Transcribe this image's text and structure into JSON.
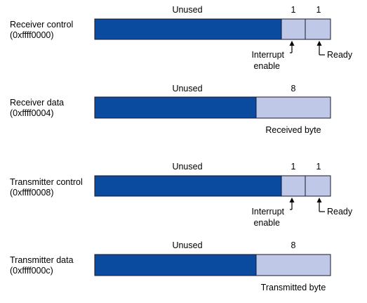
{
  "colors": {
    "unused": "#0a4a9f",
    "field": "#bfc8e6"
  },
  "registers": [
    {
      "name": "Receiver control",
      "address": "(0xffff0000)",
      "unused_label": "Unused",
      "bit_labels": [
        "1",
        "1"
      ],
      "annotations": [
        "Interrupt",
        "enable",
        "Ready"
      ]
    },
    {
      "name": "Receiver data",
      "address": "(0xffff0004)",
      "unused_label": "Unused",
      "bit_labels": [
        "8"
      ],
      "annotations": [
        "Received byte"
      ]
    },
    {
      "name": "Transmitter control",
      "address": "(0xffff0008)",
      "unused_label": "Unused",
      "bit_labels": [
        "1",
        "1"
      ],
      "annotations": [
        "Interrupt",
        "enable",
        "Ready"
      ]
    },
    {
      "name": "Transmitter data",
      "address": "(0xffff000c)",
      "unused_label": "Unused",
      "bit_labels": [
        "8"
      ],
      "annotations": [
        "Transmitted byte"
      ]
    }
  ]
}
